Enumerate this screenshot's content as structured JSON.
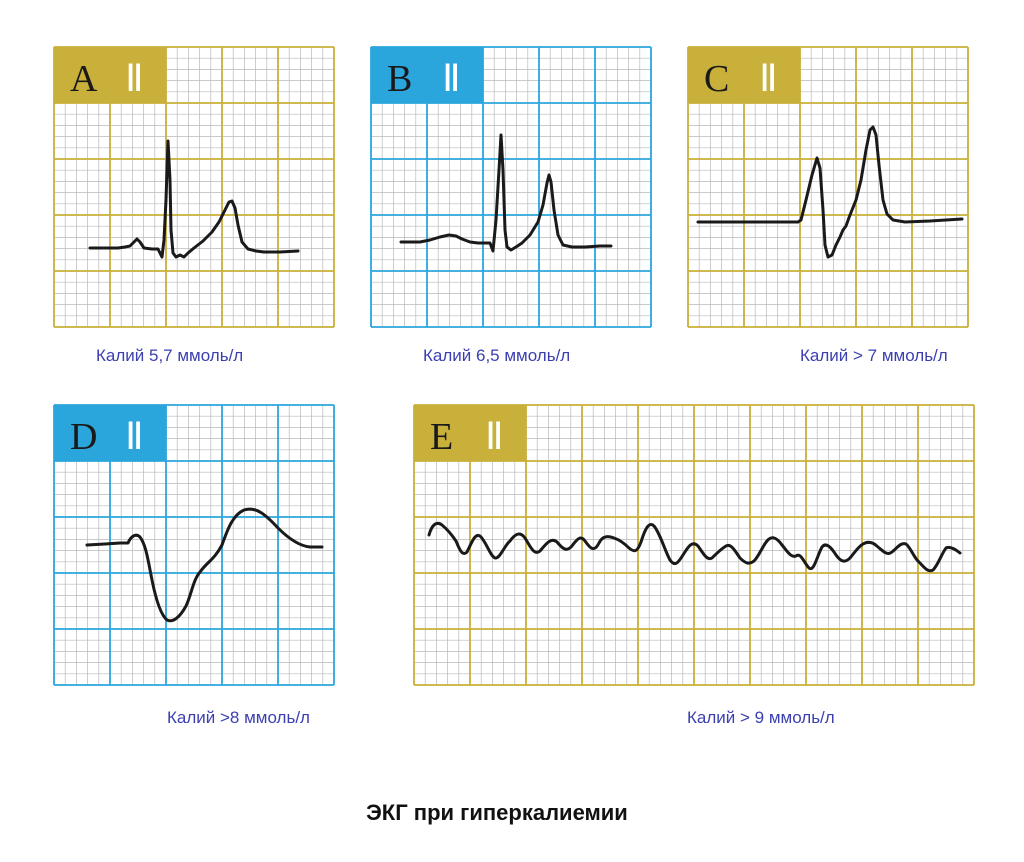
{
  "title": "ЭКГ при гиперкалиемии",
  "colors": {
    "gold": "#c8b03a",
    "blue": "#2ba6dd",
    "gold_minor": "#b8b8b8",
    "blue_minor": "#b8b8b8",
    "trace": "#1a1a1a",
    "caption": "#3b3fb0"
  },
  "panels": [
    {
      "letter": "A",
      "lead": "Ⅱ",
      "theme": "gold",
      "caption": "Калий 5,7 ммоль/л"
    },
    {
      "letter": "B",
      "lead": "Ⅱ",
      "theme": "blue",
      "caption": "Калий 6,5 ммоль/л"
    },
    {
      "letter": "C",
      "lead": "Ⅱ",
      "theme": "gold",
      "caption": "Калий > 7 ммоль/л"
    },
    {
      "letter": "D",
      "lead": "Ⅱ",
      "theme": "blue",
      "caption": "Калий >8 ммоль/л"
    },
    {
      "letter": "E",
      "lead": "Ⅱ",
      "theme": "gold",
      "caption": "Калий > 9 ммоль/л"
    }
  ]
}
